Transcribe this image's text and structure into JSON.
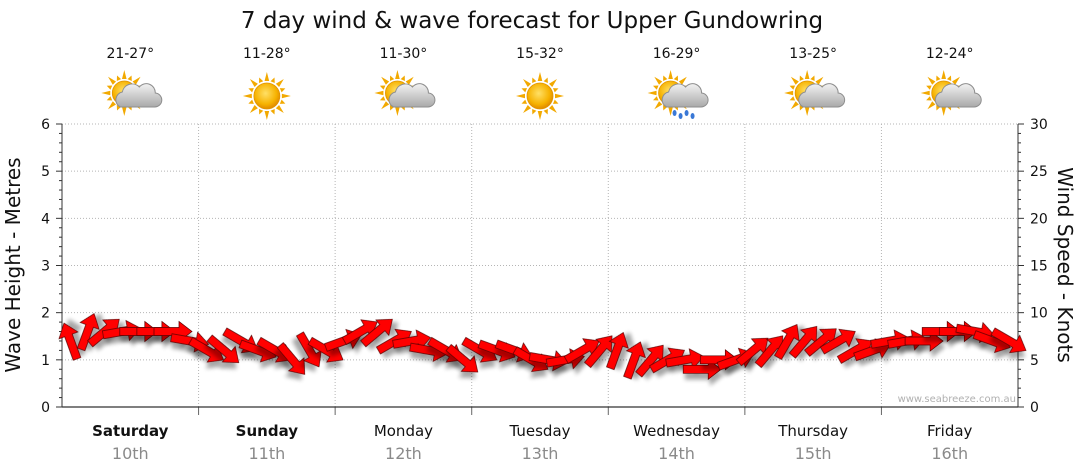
{
  "chart_data": {
    "type": "line",
    "title": "7 day wind & wave forecast for Upper Gundowring",
    "ylabel_left": "Wave Height - Metres",
    "ylabel_right": "Wind Speed - Knots",
    "ylim_left": [
      0,
      6
    ],
    "ylim_right": [
      0,
      30
    ],
    "yticks_left": [
      "0",
      "1",
      "2",
      "3",
      "4",
      "5",
      "6"
    ],
    "yticks_right": [
      "0",
      "5",
      "10",
      "15",
      "20",
      "25",
      "30"
    ],
    "grid": true,
    "credit": "www.seabreeze.com.au",
    "days": [
      {
        "name": "Saturday",
        "date": "10th",
        "temp": "21-27°",
        "icon": "partly-cloudy-icon",
        "bold": true
      },
      {
        "name": "Sunday",
        "date": "11th",
        "temp": "11-28°",
        "icon": "sunny-icon",
        "bold": true
      },
      {
        "name": "Monday",
        "date": "12th",
        "temp": "11-30°",
        "icon": "partly-cloudy-icon",
        "bold": false
      },
      {
        "name": "Tuesday",
        "date": "13th",
        "temp": "15-32°",
        "icon": "sunny-icon",
        "bold": false
      },
      {
        "name": "Wednesday",
        "date": "14th",
        "temp": "16-29°",
        "icon": "showers-icon",
        "bold": false
      },
      {
        "name": "Thursday",
        "date": "15th",
        "temp": "13-25°",
        "icon": "partly-cloudy-icon",
        "bold": false
      },
      {
        "name": "Friday",
        "date": "16th",
        "temp": "12-24°",
        "icon": "partly-cloudy-icon",
        "bold": false
      }
    ],
    "series": [
      {
        "units": "knots",
        "color": "#ff0000",
        "x_hours": [
          0,
          3,
          6,
          9,
          12,
          15,
          18,
          21,
          24,
          27,
          30,
          33,
          36,
          39,
          42,
          45,
          48,
          51,
          54,
          57,
          60,
          63,
          66,
          69,
          72,
          75,
          78,
          81,
          84,
          87,
          90,
          93,
          96,
          99,
          102,
          105,
          108,
          111,
          114,
          117,
          120,
          123,
          126,
          129,
          132,
          135,
          138,
          141,
          144,
          147,
          150,
          153,
          156,
          159,
          162,
          165
        ],
        "values": [
          7,
          8,
          8,
          8,
          8,
          8,
          8,
          7,
          6,
          6,
          7,
          6,
          6,
          5,
          6,
          6,
          7,
          8,
          8,
          7,
          7,
          6,
          6,
          5,
          6,
          6,
          6,
          5,
          5,
          5,
          6,
          6,
          6,
          5,
          5,
          5,
          5,
          4,
          5,
          5,
          6,
          6,
          7,
          7,
          7,
          7,
          6,
          6,
          7,
          7,
          7,
          8,
          8,
          8,
          7,
          7
        ],
        "direction_deg": [
          160,
          200,
          230,
          260,
          270,
          270,
          270,
          280,
          300,
          310,
          300,
          290,
          300,
          320,
          330,
          300,
          250,
          240,
          230,
          240,
          260,
          280,
          300,
          310,
          300,
          290,
          290,
          300,
          280,
          260,
          240,
          220,
          200,
          200,
          220,
          240,
          260,
          270,
          270,
          250,
          230,
          220,
          210,
          220,
          230,
          240,
          240,
          250,
          260,
          260,
          270,
          270,
          270,
          280,
          290,
          300
        ]
      }
    ]
  }
}
